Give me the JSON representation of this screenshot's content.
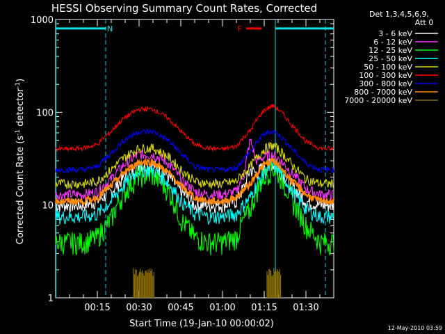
{
  "chart_data": {
    "type": "line",
    "title": "HESSI Observing Summary Count Rates, Corrected",
    "xlabel": "Start Time (19-Jan-10 00:00:02)",
    "ylabel": "Corrected Count Rate (s⁻¹ detector⁻¹)",
    "ylabel_main": "Corrected Count Rate (s",
    "ylabel_sup1": "-1",
    "ylabel_mid": " detector",
    "ylabel_sup2": "-1",
    "ylabel_end": ")",
    "yscale": "log",
    "ylim": [
      1,
      1000
    ],
    "xlim_minutes": [
      0,
      100
    ],
    "x_ticks": [
      {
        "m": 15,
        "label": "00:15"
      },
      {
        "m": 30,
        "label": "00:30"
      },
      {
        "m": 45,
        "label": "00:45"
      },
      {
        "m": 60,
        "label": "01:00"
      },
      {
        "m": 75,
        "label": "01:15"
      },
      {
        "m": 90,
        "label": "01:30"
      }
    ],
    "y_ticks": [
      {
        "v": 1,
        "label": "1"
      },
      {
        "v": 10,
        "label": "10"
      },
      {
        "v": 100,
        "label": "100"
      },
      {
        "v": 1000,
        "label": "1000"
      }
    ],
    "legend_header": [
      "Det 1,3,4,5,6,9,",
      "Att 0"
    ],
    "legend_placement": "right",
    "series": [
      {
        "name": "3 - 6 keV",
        "color": "#ffffff",
        "x": [
          0,
          5,
          10,
          15,
          20,
          25,
          30,
          35,
          40,
          45,
          50,
          55,
          60,
          65,
          68,
          70,
          72,
          75,
          78,
          80,
          85,
          90,
          95,
          100
        ],
        "y": [
          10,
          10,
          10,
          11,
          14,
          20,
          27,
          27,
          21,
          14,
          10,
          10,
          10,
          11,
          16,
          24,
          22,
          26,
          28,
          24,
          16,
          11,
          10,
          10
        ]
      },
      {
        "name": "6 - 12 keV",
        "color": "#ff33ff",
        "x": [
          0,
          5,
          10,
          15,
          20,
          25,
          30,
          35,
          40,
          45,
          50,
          55,
          60,
          65,
          68,
          70,
          72,
          75,
          78,
          80,
          85,
          90,
          95,
          100
        ],
        "y": [
          13,
          13,
          13,
          14,
          19,
          28,
          35,
          35,
          29,
          19,
          14,
          13,
          13,
          14,
          22,
          50,
          30,
          33,
          35,
          32,
          22,
          15,
          13,
          13
        ]
      },
      {
        "name": "12 - 25 keV",
        "color": "#00ff00",
        "x": [
          0,
          5,
          10,
          15,
          20,
          25,
          30,
          35,
          40,
          45,
          50,
          55,
          60,
          65,
          70,
          75,
          78,
          80,
          85,
          90,
          95,
          100
        ],
        "y": [
          4,
          4,
          4,
          4.5,
          7,
          14,
          21,
          21,
          15,
          7,
          4.5,
          4,
          4,
          4.5,
          9,
          20,
          25,
          22,
          11,
          6,
          4,
          4
        ]
      },
      {
        "name": "25 - 50 keV",
        "color": "#00ffff",
        "x": [
          0,
          5,
          10,
          15,
          20,
          25,
          30,
          35,
          40,
          45,
          50,
          55,
          60,
          65,
          70,
          75,
          78,
          80,
          85,
          90,
          95,
          100
        ],
        "y": [
          7.5,
          7.5,
          7.5,
          8,
          11,
          17,
          24,
          24,
          18,
          11,
          8,
          7.5,
          7.5,
          8,
          12,
          22,
          27,
          24,
          14,
          9,
          7.5,
          7.5
        ]
      },
      {
        "name": "50 - 100 keV",
        "color": "#dddd00",
        "x": [
          0,
          5,
          10,
          15,
          20,
          25,
          30,
          35,
          40,
          45,
          50,
          55,
          60,
          65,
          70,
          75,
          78,
          80,
          85,
          90,
          95,
          100
        ],
        "y": [
          17,
          17,
          17,
          18,
          24,
          33,
          41,
          41,
          34,
          24,
          18,
          17,
          17,
          18,
          26,
          40,
          44,
          40,
          27,
          19,
          17,
          17
        ]
      },
      {
        "name": "100 - 300 keV",
        "color": "#ff0000",
        "x": [
          0,
          5,
          10,
          15,
          20,
          25,
          30,
          35,
          40,
          45,
          50,
          55,
          60,
          65,
          70,
          75,
          78,
          80,
          85,
          90,
          95,
          100
        ],
        "y": [
          40,
          40,
          41,
          45,
          62,
          88,
          108,
          108,
          88,
          62,
          45,
          41,
          40,
          43,
          63,
          105,
          118,
          108,
          72,
          48,
          41,
          40
        ]
      },
      {
        "name": "300 - 800 keV",
        "color": "#0000ff",
        "x": [
          0,
          5,
          10,
          15,
          20,
          25,
          30,
          35,
          40,
          45,
          50,
          55,
          60,
          65,
          70,
          75,
          78,
          80,
          85,
          90,
          95,
          100
        ],
        "y": [
          24,
          24,
          24,
          26,
          36,
          51,
          62,
          62,
          51,
          36,
          26,
          24,
          24,
          25,
          37,
          58,
          63,
          58,
          40,
          28,
          24,
          24
        ]
      },
      {
        "name": "800 - 7000 keV",
        "color": "#ff8800",
        "x": [
          0,
          5,
          10,
          15,
          20,
          25,
          30,
          35,
          40,
          45,
          50,
          55,
          60,
          65,
          70,
          75,
          78,
          80,
          85,
          90,
          95,
          100
        ],
        "y": [
          11,
          11,
          11,
          12,
          16,
          23,
          29,
          29,
          23,
          16,
          12,
          11,
          11,
          12,
          17,
          27,
          30,
          27,
          18,
          13,
          11,
          11
        ]
      },
      {
        "name": "7000 - 20000 keV",
        "color": "#8b6f00",
        "bursts": [
          {
            "x0": 28,
            "x1": 35.5,
            "y": 2
          },
          {
            "x0": 76,
            "x1": 81,
            "y": 2
          }
        ]
      }
    ],
    "markers": {
      "N": {
        "label": "N",
        "color": "#00e5ee",
        "y": 800,
        "segments": [
          [
            0,
            18
          ],
          [
            79,
            100
          ]
        ]
      },
      "F": {
        "label": "F",
        "color": "#ff0000",
        "y": 800,
        "segments": [
          [
            68.5,
            74
          ]
        ]
      }
    },
    "vlines": [
      {
        "m": 18,
        "color": "#00e5ee",
        "dashed": true
      },
      {
        "m": 79,
        "color": "#00e5ee",
        "dashed": false
      },
      {
        "m": 97,
        "color": "#00e5ee",
        "dashed": true
      }
    ]
  },
  "footer_date": "12-May-2010 03:59"
}
